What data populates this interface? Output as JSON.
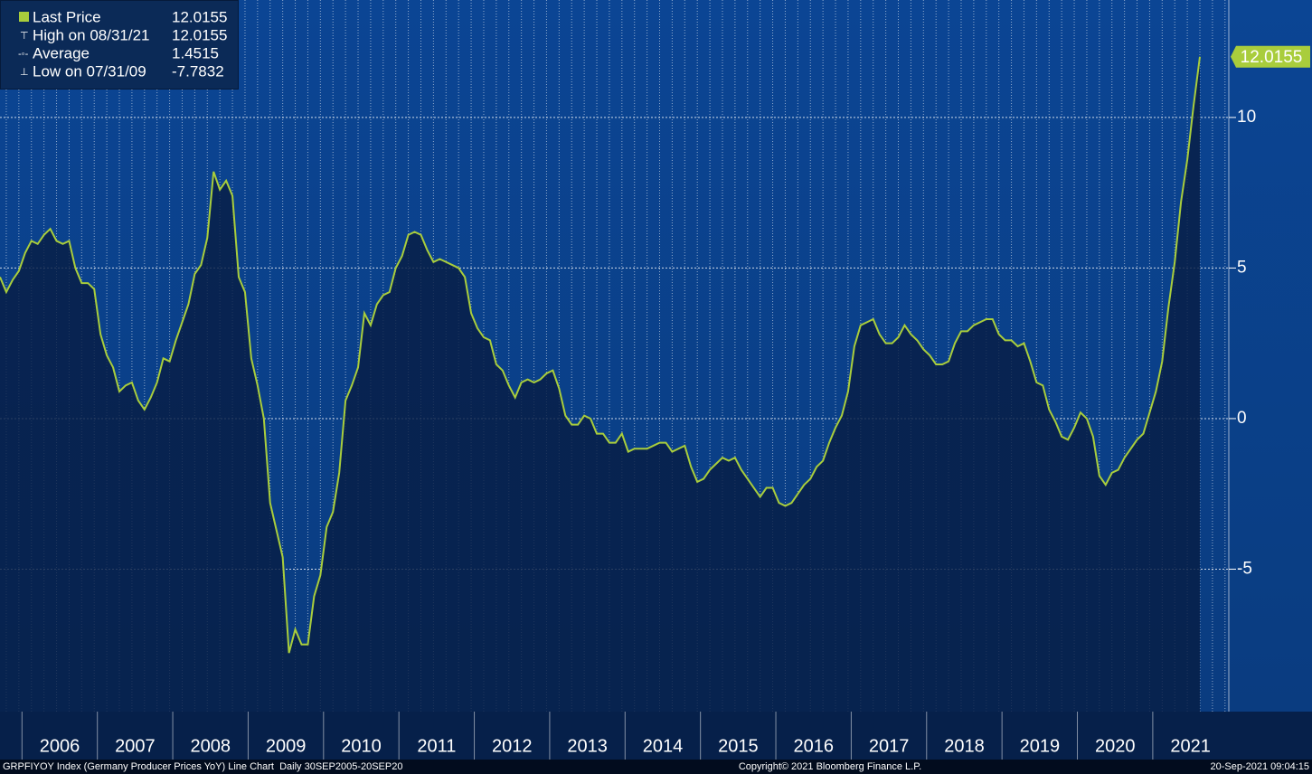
{
  "chart_data": {
    "type": "line",
    "series": [
      {
        "name": "Last Price",
        "color": "#a9cd3c",
        "values": [
          4.7,
          4.2,
          4.6,
          4.9,
          5.5,
          5.9,
          5.8,
          6.1,
          6.3,
          5.9,
          5.8,
          5.9,
          5.0,
          4.5,
          4.5,
          4.3,
          2.8,
          2.1,
          1.7,
          0.9,
          1.1,
          1.2,
          0.6,
          0.3,
          0.7,
          1.2,
          2.0,
          1.9,
          2.6,
          3.2,
          3.8,
          4.8,
          5.1,
          6.0,
          8.2,
          7.6,
          7.9,
          7.4,
          4.7,
          4.2,
          2.0,
          1.1,
          0.0,
          -2.8,
          -3.7,
          -4.6,
          -7.7832,
          -7.0,
          -7.5,
          -7.5,
          -5.9,
          -5.2,
          -3.6,
          -3.1,
          -1.8,
          0.6,
          1.1,
          1.7,
          3.5,
          3.1,
          3.8,
          4.1,
          4.2,
          5.0,
          5.4,
          6.1,
          6.2,
          6.1,
          5.6,
          5.2,
          5.3,
          5.2,
          5.1,
          5.0,
          4.7,
          3.5,
          3.0,
          2.7,
          2.6,
          1.8,
          1.6,
          1.1,
          0.7,
          1.2,
          1.3,
          1.2,
          1.3,
          1.5,
          1.6,
          1.0,
          0.1,
          -0.2,
          -0.2,
          0.1,
          0.0,
          -0.5,
          -0.5,
          -0.8,
          -0.8,
          -0.5,
          -1.1,
          -1.0,
          -1.0,
          -1.0,
          -0.9,
          -0.8,
          -0.8,
          -1.1,
          -1.0,
          -0.9,
          -1.6,
          -2.1,
          -2.0,
          -1.7,
          -1.5,
          -1.3,
          -1.4,
          -1.3,
          -1.7,
          -2.0,
          -2.3,
          -2.6,
          -2.3,
          -2.3,
          -2.8,
          -2.9,
          -2.8,
          -2.5,
          -2.2,
          -2.0,
          -1.6,
          -1.4,
          -0.8,
          -0.3,
          0.1,
          0.9,
          2.4,
          3.1,
          3.2,
          3.3,
          2.8,
          2.5,
          2.5,
          2.7,
          3.1,
          2.8,
          2.6,
          2.3,
          2.1,
          1.8,
          1.8,
          1.9,
          2.5,
          2.9,
          2.9,
          3.1,
          3.2,
          3.3,
          3.3,
          2.8,
          2.6,
          2.6,
          2.4,
          2.5,
          1.9,
          1.2,
          1.1,
          0.3,
          -0.1,
          -0.6,
          -0.7,
          -0.3,
          0.2,
          0.0,
          -0.6,
          -1.9,
          -2.2,
          -1.8,
          -1.7,
          -1.3,
          -1.0,
          -0.7,
          -0.5,
          0.2,
          0.9,
          1.9,
          3.7,
          5.2,
          7.2,
          8.6,
          10.4,
          12.0155
        ]
      }
    ],
    "categories": [
      null,
      null,
      null,
      null,
      null,
      null,
      null,
      null,
      null,
      null,
      "2006",
      null,
      null,
      null,
      null,
      null,
      null,
      null,
      null,
      null,
      null,
      null,
      "2007",
      null,
      null,
      null,
      null,
      null,
      null,
      null,
      null,
      null,
      null,
      null,
      "2008",
      null,
      null,
      null,
      null,
      null,
      null,
      null,
      null,
      null,
      null,
      null,
      "2009",
      null,
      null,
      null,
      null,
      null,
      null,
      null,
      null,
      null,
      null,
      null,
      "2010",
      null,
      null,
      null,
      null,
      null,
      null,
      null,
      null,
      null,
      null,
      null,
      "2011",
      null,
      null,
      null,
      null,
      null,
      null,
      null,
      null,
      null,
      null,
      null,
      "2012",
      null,
      null,
      null,
      null,
      null,
      null,
      null,
      null,
      null,
      null,
      null,
      "2013",
      null,
      null,
      null,
      null,
      null,
      null,
      null,
      null,
      null,
      null,
      null,
      "2014",
      null,
      null,
      null,
      null,
      null,
      null,
      null,
      null,
      null,
      null,
      null,
      "2015",
      null,
      null,
      null,
      null,
      null,
      null,
      null,
      null,
      null,
      null,
      null,
      "2016",
      null,
      null,
      null,
      null,
      null,
      null,
      null,
      null,
      null,
      null,
      null,
      "2017",
      null,
      null,
      null,
      null,
      null,
      null,
      null,
      null,
      null,
      null,
      null,
      "2018",
      null,
      null,
      null,
      null,
      null,
      null,
      null,
      null,
      null,
      null,
      null,
      "2019",
      null,
      null,
      null,
      null,
      null,
      null,
      null,
      null,
      null,
      null,
      null,
      "2020",
      null,
      null,
      null,
      null,
      null,
      null,
      null,
      null,
      null,
      null,
      null,
      "2021",
      null
    ],
    "stats": [
      {
        "label": "High on 08/31/21",
        "value": 12.0155
      },
      {
        "label": "Average",
        "value": 1.4515
      },
      {
        "label": "Low on 07/31/09",
        "value": -7.7832
      }
    ],
    "ylim": [
      -9.73,
      13.9
    ],
    "yticks": [
      -5,
      0,
      5,
      10
    ],
    "grid": true,
    "footer": {
      "left": "GRPFIYOY Index (Germany Producer Prices YoY) Line Chart  Daily 30SEP2005-20SEP20",
      "center": "Copyright© 2021 Bloomberg Finance L.P.",
      "right": "20-Sep-2021 09:04:15"
    }
  }
}
